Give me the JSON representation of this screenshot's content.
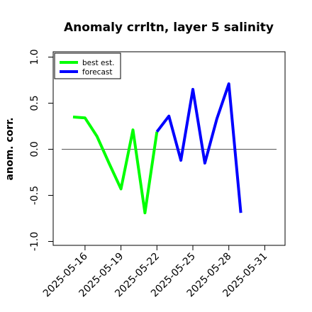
{
  "chart_data": {
    "type": "line",
    "title": "Anomaly crrltn, layer 5 salinity",
    "xlabel": "",
    "ylabel": "anom. corr.",
    "ylim": [
      -1.0,
      1.0
    ],
    "yticks": [
      "-1.0",
      "-0.5",
      "0.0",
      "0.5",
      "1.0"
    ],
    "x_tick_labels": [
      "2025-05-16",
      "2025-05-19",
      "2025-05-22",
      "2025-05-25",
      "2025-05-28",
      "2025-05-31"
    ],
    "highlighted_tick": "2025-05-22",
    "reference_line": 0.0,
    "grid": false,
    "legend_position": "top-left",
    "series": [
      {
        "name": "best est.",
        "color": "#00ff00",
        "x": [
          "2025-05-15",
          "2025-05-16",
          "2025-05-17",
          "2025-05-18",
          "2025-05-19",
          "2025-05-20",
          "2025-05-21",
          "2025-05-22"
        ],
        "values": [
          0.35,
          0.34,
          0.14,
          -0.15,
          -0.43,
          0.21,
          -0.69,
          0.19
        ]
      },
      {
        "name": "forecast",
        "color": "#0000ff",
        "x": [
          "2025-05-22",
          "2025-05-23",
          "2025-05-24",
          "2025-05-25",
          "2025-05-26",
          "2025-05-27",
          "2025-05-28",
          "2025-05-29"
        ],
        "values": [
          0.19,
          0.36,
          -0.12,
          0.65,
          -0.15,
          0.33,
          0.71,
          -0.69
        ]
      }
    ]
  }
}
